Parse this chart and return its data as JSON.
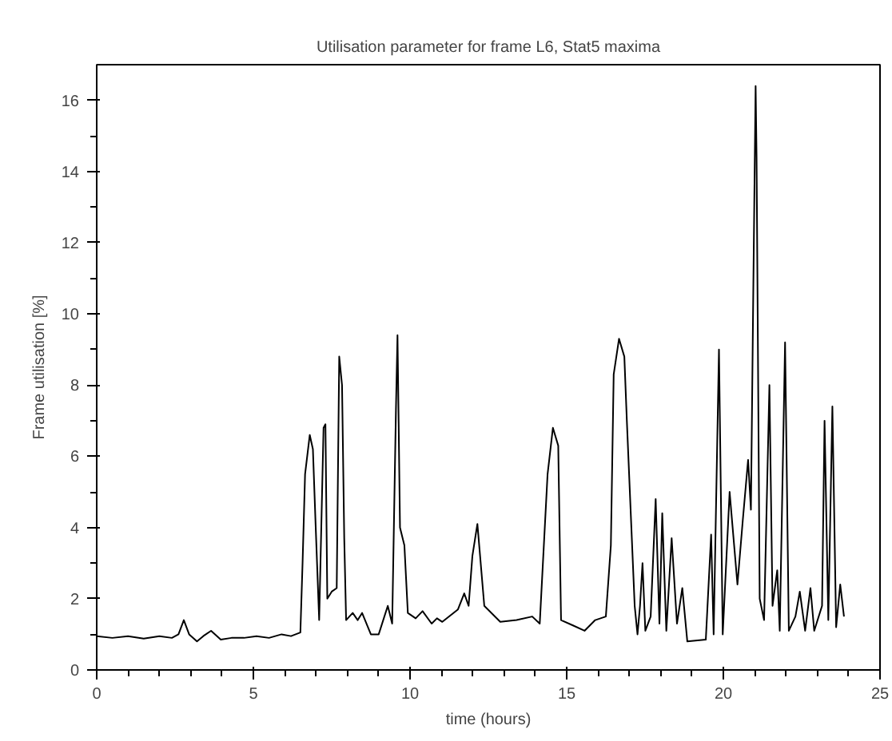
{
  "chart_data": {
    "type": "line",
    "title": "Utilisation parameter for frame L6, Stat5 maxima",
    "xlabel": "time (hours)",
    "ylabel": "Frame utilisation [%]",
    "xlim": [
      0,
      25
    ],
    "xticks": [
      0,
      5,
      10,
      15,
      20,
      25
    ],
    "ylim": [
      0,
      17
    ],
    "yticks": [
      0,
      2,
      4,
      6,
      8,
      10,
      12,
      14,
      16
    ],
    "grid": false,
    "marker": "none",
    "line_style": "solid",
    "series": [
      {
        "color": "#000000",
        "x": [
          0,
          0.5,
          1,
          1.5,
          2,
          2.4,
          2.61,
          2.78,
          2.95,
          3.2,
          3.4,
          3.65,
          3.96,
          4.3,
          4.7,
          5.1,
          5.5,
          5.9,
          6.2,
          6.5,
          6.57,
          6.65,
          6.8,
          6.9,
          6.99,
          7.1,
          7.24,
          7.3,
          7.36,
          7.5,
          7.66,
          7.74,
          7.83,
          7.9,
          7.96,
          8.17,
          8.33,
          8.47,
          8.75,
          9.0,
          9.29,
          9.43,
          9.55,
          9.6,
          9.68,
          9.82,
          9.93,
          10.18,
          10.4,
          10.69,
          10.86,
          11.03,
          11.53,
          11.73,
          11.87,
          11.99,
          12.15,
          12.37,
          12.88,
          13.4,
          13.9,
          14.14,
          14.39,
          14.56,
          14.73,
          14.82,
          15.2,
          15.57,
          15.91,
          16.25,
          16.41,
          16.5,
          16.67,
          16.84,
          16.92,
          17.17,
          17.26,
          17.34,
          17.42,
          17.51,
          17.68,
          17.84,
          17.96,
          18.05,
          18.18,
          18.35,
          18.52,
          18.69,
          18.85,
          19.44,
          19.61,
          19.69,
          19.86,
          19.98,
          20.2,
          20.45,
          20.62,
          20.79,
          20.88,
          20.96,
          21.03,
          21.06,
          21.16,
          21.3,
          21.47,
          21.57,
          21.72,
          21.8,
          21.97,
          22.09,
          22.3,
          22.44,
          22.61,
          22.78,
          22.9,
          23.15,
          23.23,
          23.35,
          23.48,
          23.6,
          23.73,
          23.85
        ],
        "values": [
          0.95,
          0.9,
          0.95,
          0.88,
          0.95,
          0.9,
          1.0,
          1.4,
          1.0,
          0.8,
          0.95,
          1.1,
          0.85,
          0.9,
          0.9,
          0.95,
          0.9,
          1.0,
          0.95,
          1.05,
          3.0,
          5.5,
          6.6,
          6.2,
          4.0,
          1.4,
          6.8,
          6.9,
          2.0,
          2.2,
          2.3,
          8.8,
          8.0,
          3.7,
          1.4,
          1.6,
          1.4,
          1.6,
          1.0,
          1.0,
          1.8,
          1.3,
          7.3,
          9.4,
          4.0,
          3.5,
          1.6,
          1.45,
          1.65,
          1.3,
          1.45,
          1.35,
          1.7,
          2.15,
          1.8,
          3.2,
          4.1,
          1.8,
          1.35,
          1.4,
          1.5,
          1.3,
          5.5,
          6.8,
          6.3,
          1.4,
          1.25,
          1.1,
          1.4,
          1.5,
          3.5,
          8.3,
          9.3,
          8.8,
          7.0,
          1.8,
          1.0,
          1.8,
          3.0,
          1.1,
          1.5,
          4.8,
          1.3,
          4.4,
          1.1,
          3.7,
          1.3,
          2.3,
          0.8,
          0.85,
          3.8,
          1.0,
          9.0,
          1.0,
          5.0,
          2.4,
          4.2,
          5.9,
          4.5,
          11.0,
          16.4,
          14.4,
          2.0,
          1.4,
          8.0,
          1.8,
          2.8,
          1.1,
          9.2,
          1.1,
          1.5,
          2.2,
          1.1,
          2.3,
          1.1,
          1.8,
          7.0,
          1.4,
          7.4,
          1.2,
          2.4,
          1.5
        ]
      }
    ]
  }
}
